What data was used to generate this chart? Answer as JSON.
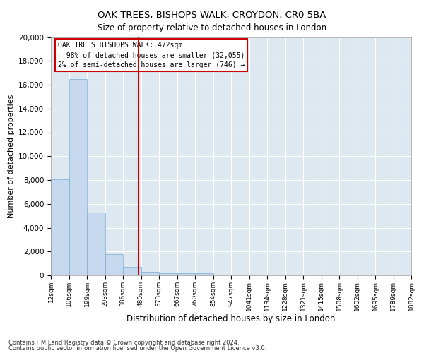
{
  "title": "OAK TREES, BISHOPS WALK, CROYDON, CR0 5BA",
  "subtitle": "Size of property relative to detached houses in London",
  "xlabel": "Distribution of detached houses by size in London",
  "ylabel": "Number of detached properties",
  "bar_color": "#c5d8ee",
  "bar_edge_color": "#7aadd4",
  "background_color": "#dde8f0",
  "grid_color": "#ffffff",
  "annotation_box_color": "#cc0000",
  "vline_color": "#cc0000",
  "vline_x": 4.87,
  "annotation_lines": [
    "OAK TREES BISHOPS WALK: 472sqm",
    "← 98% of detached houses are smaller (32,055)",
    "2% of semi-detached houses are larger (746) →"
  ],
  "bins": [
    "12sqm",
    "106sqm",
    "199sqm",
    "293sqm",
    "386sqm",
    "480sqm",
    "573sqm",
    "667sqm",
    "760sqm",
    "854sqm",
    "947sqm",
    "1041sqm",
    "1134sqm",
    "1228sqm",
    "1321sqm",
    "1415sqm",
    "1508sqm",
    "1602sqm",
    "1695sqm",
    "1789sqm",
    "1882sqm"
  ],
  "bar_heights": [
    8050,
    16500,
    5300,
    1750,
    700,
    300,
    200,
    175,
    150,
    0,
    0,
    0,
    0,
    0,
    0,
    0,
    0,
    0,
    0,
    0
  ],
  "ylim": [
    0,
    20000
  ],
  "yticks": [
    0,
    2000,
    4000,
    6000,
    8000,
    10000,
    12000,
    14000,
    16000,
    18000,
    20000
  ],
  "footnote1": "Contains HM Land Registry data © Crown copyright and database right 2024.",
  "footnote2": "Contains public sector information licensed under the Open Government Licence v3.0."
}
